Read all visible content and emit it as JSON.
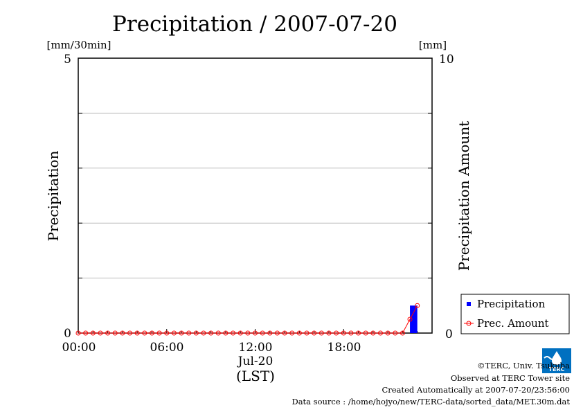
{
  "chart_data": {
    "type": "bar+line",
    "title": "Precipitation / 2007-07-20",
    "y_left": {
      "label": "Precipitation",
      "unit": "[mm/30min]",
      "range": [
        0,
        5
      ],
      "tick_labels": [
        "0",
        "5"
      ]
    },
    "y_right": {
      "label": "Precipitation Amount",
      "unit": "[mm]",
      "range": [
        0,
        10
      ],
      "tick_labels": [
        "0",
        "10"
      ]
    },
    "x_axis": {
      "range_hours": [
        0,
        24
      ],
      "tick_labels": [
        "00:00",
        "06:00",
        "12:00",
        "18:00"
      ],
      "date_label": "Jul-20",
      "label": "(LST)"
    },
    "grid": true,
    "legend_position": "bottom-right",
    "series": [
      {
        "name": "Precipitation",
        "kind": "bar",
        "color": "#0000ff",
        "axis": "left",
        "x": [
          "22:30"
        ],
        "values": [
          0.5
        ]
      },
      {
        "name": "Prec. Amount",
        "kind": "line-marker",
        "color": "#ff0000",
        "axis": "right",
        "x": [
          "00:00",
          "00:30",
          "01:00",
          "01:30",
          "02:00",
          "02:30",
          "03:00",
          "03:30",
          "04:00",
          "04:30",
          "05:00",
          "05:30",
          "06:00",
          "06:30",
          "07:00",
          "07:30",
          "08:00",
          "08:30",
          "09:00",
          "09:30",
          "10:00",
          "10:30",
          "11:00",
          "11:30",
          "12:00",
          "12:30",
          "13:00",
          "13:30",
          "14:00",
          "14:30",
          "15:00",
          "15:30",
          "16:00",
          "16:30",
          "17:00",
          "17:30",
          "18:00",
          "18:30",
          "19:00",
          "19:30",
          "20:00",
          "20:30",
          "21:00",
          "21:30",
          "22:00",
          "22:30",
          "23:00"
        ],
        "values": [
          0,
          0,
          0,
          0,
          0,
          0,
          0,
          0,
          0,
          0,
          0,
          0,
          0,
          0,
          0,
          0,
          0,
          0,
          0,
          0,
          0,
          0,
          0,
          0,
          0,
          0,
          0,
          0,
          0,
          0,
          0,
          0,
          0,
          0,
          0,
          0,
          0,
          0,
          0,
          0,
          0,
          0,
          0,
          0,
          0,
          0.5,
          1.0
        ]
      }
    ]
  },
  "footer": {
    "copyright": "©TERC, Univ. Tsukuba",
    "observed": "Observed at TERC Tower site",
    "created": "Created Automatically at 2007-07-20/23:56:00",
    "source": "Data source : /home/hojyo/new/TERC-data/sorted_data/MET.30m.dat"
  },
  "logo": {
    "text": "TERC",
    "icon": "terc-water-drop-logo",
    "color": "#0070c0"
  }
}
